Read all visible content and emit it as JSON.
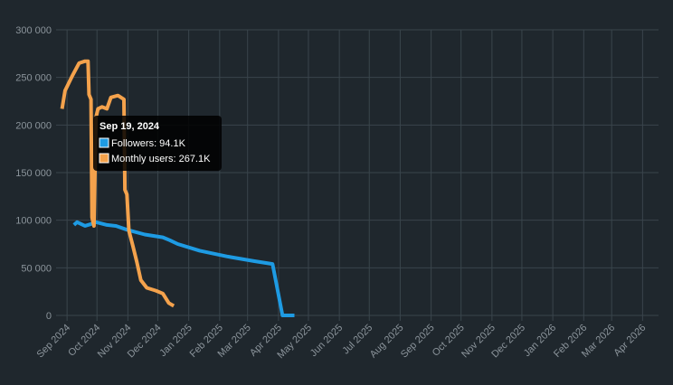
{
  "chart_data": {
    "type": "line",
    "xlim": [
      "2024-08-21",
      "2026-04-17"
    ],
    "xticks": [
      {
        "value": "2024-09-01",
        "label": "Sep 2024"
      },
      {
        "value": "2024-10-01",
        "label": "Oct 2024"
      },
      {
        "value": "2024-11-01",
        "label": "Nov 2024"
      },
      {
        "value": "2024-12-01",
        "label": "Dec 2024"
      },
      {
        "value": "2025-01-01",
        "label": "Jan 2025"
      },
      {
        "value": "2025-02-01",
        "label": "Feb 2025"
      },
      {
        "value": "2025-03-01",
        "label": "Mar 2025"
      },
      {
        "value": "2025-04-01",
        "label": "Apr 2025"
      },
      {
        "value": "2025-05-01",
        "label": "May 2025"
      },
      {
        "value": "2025-06-01",
        "label": "Jun 2025"
      },
      {
        "value": "2025-07-01",
        "label": "Jul 2025"
      },
      {
        "value": "2025-08-01",
        "label": "Aug 2025"
      },
      {
        "value": "2025-09-01",
        "label": "Sep 2025"
      },
      {
        "value": "2025-10-01",
        "label": "Oct 2025"
      },
      {
        "value": "2025-11-01",
        "label": "Nov 2025"
      },
      {
        "value": "2025-12-01",
        "label": "Dec 2025"
      },
      {
        "value": "2026-01-01",
        "label": "Jan 2026"
      },
      {
        "value": "2026-02-01",
        "label": "Feb 2026"
      },
      {
        "value": "2026-03-01",
        "label": "Mar 2026"
      },
      {
        "value": "2026-04-01",
        "label": "Apr 2026"
      }
    ],
    "ylim": [
      0,
      300000
    ],
    "yticks": [
      {
        "value": 0,
        "label": "0"
      },
      {
        "value": 50000,
        "label": "50 000"
      },
      {
        "value": 100000,
        "label": "100 000"
      },
      {
        "value": 150000,
        "label": "150 000"
      },
      {
        "value": 200000,
        "label": "200 000"
      },
      {
        "value": 250000,
        "label": "250 000"
      },
      {
        "value": 300000,
        "label": "300 000"
      }
    ],
    "grid": true,
    "series": [
      {
        "name": "Followers",
        "color": "#1e9be3",
        "x": [
          "2024-09-08",
          "2024-09-11",
          "2024-09-19",
          "2024-09-25",
          "2024-09-30",
          "2024-10-11",
          "2024-10-20",
          "2024-10-31",
          "2024-11-18",
          "2024-12-06",
          "2024-12-13",
          "2024-12-21",
          "2025-01-12",
          "2025-02-08",
          "2025-03-08",
          "2025-03-26",
          "2025-04-05",
          "2025-04-17"
        ],
        "values": [
          95000,
          98000,
          94100,
          96000,
          98000,
          95000,
          94000,
          90000,
          85000,
          82000,
          79000,
          75000,
          68000,
          62000,
          57000,
          54000,
          0,
          0
        ]
      },
      {
        "name": "Monthly users",
        "color": "#f4a24c",
        "x": [
          "2024-08-27",
          "2024-08-30",
          "2024-09-06",
          "2024-09-13",
          "2024-09-19",
          "2024-09-22",
          "2024-09-23",
          "2024-09-25",
          "2024-09-26",
          "2024-09-28",
          "2024-09-30",
          "2024-10-02",
          "2024-10-06",
          "2024-10-11",
          "2024-10-15",
          "2024-10-22",
          "2024-10-28",
          "2024-10-29",
          "2024-10-31",
          "2024-11-02",
          "2024-11-06",
          "2024-11-10",
          "2024-11-14",
          "2024-11-20",
          "2024-11-29",
          "2024-12-06",
          "2024-12-12",
          "2024-12-17"
        ],
        "values": [
          217000,
          236000,
          251000,
          265000,
          267100,
          267000,
          232000,
          227000,
          103000,
          94000,
          208000,
          217000,
          219000,
          217000,
          229000,
          231000,
          227000,
          132000,
          127000,
          89000,
          73000,
          56000,
          37000,
          29000,
          26000,
          23000,
          13000,
          10000
        ]
      }
    ],
    "tooltip": {
      "title": "Sep 19, 2024",
      "lines": [
        "Followers: 94.1K",
        "Monthly users: 267.1K"
      ]
    }
  }
}
